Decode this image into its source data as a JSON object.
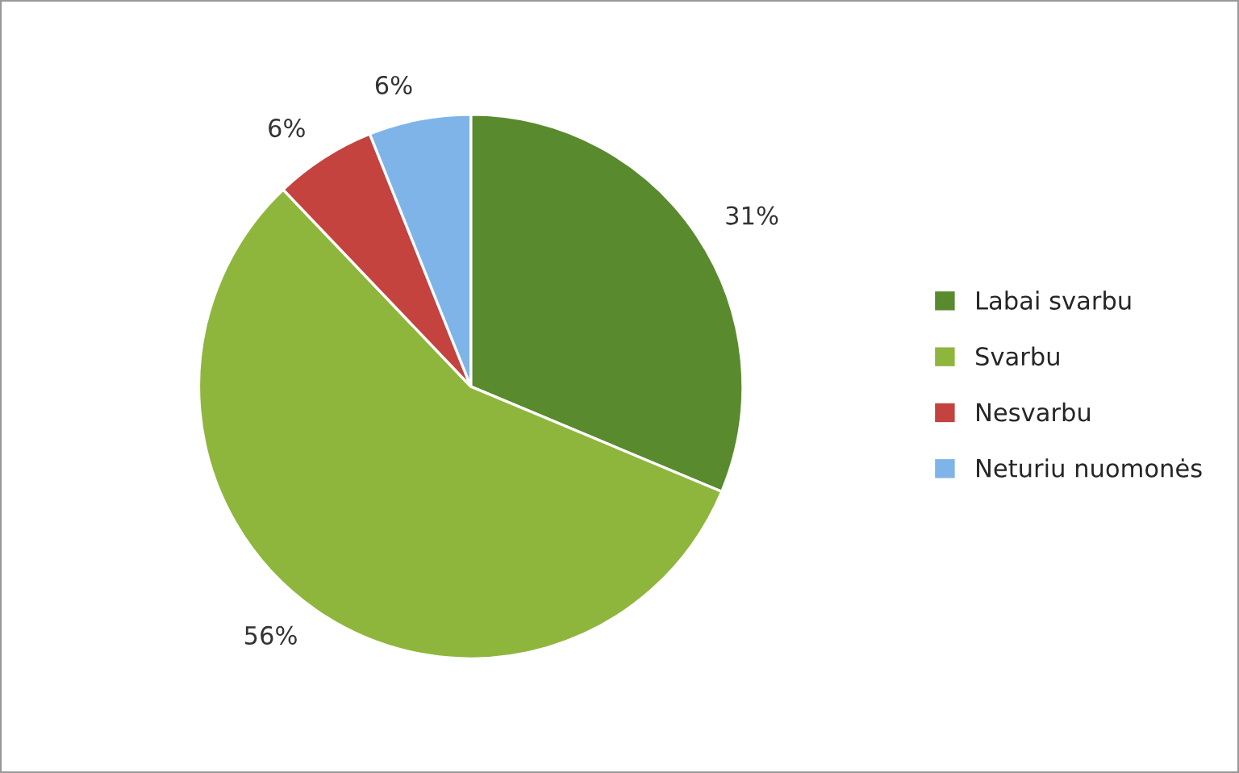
{
  "chart_data": {
    "type": "pie",
    "categories": [
      "Labai svarbu",
      "Svarbu",
      "Nesvarbu",
      "Neturiu nuomonės"
    ],
    "values": [
      31,
      56,
      6,
      6
    ],
    "colors": [
      "#5a8a2e",
      "#8fb63c",
      "#c4433f",
      "#7eb4e8"
    ],
    "value_labels": [
      "31%",
      "56%",
      "6%",
      "6%"
    ],
    "legend": "right"
  }
}
